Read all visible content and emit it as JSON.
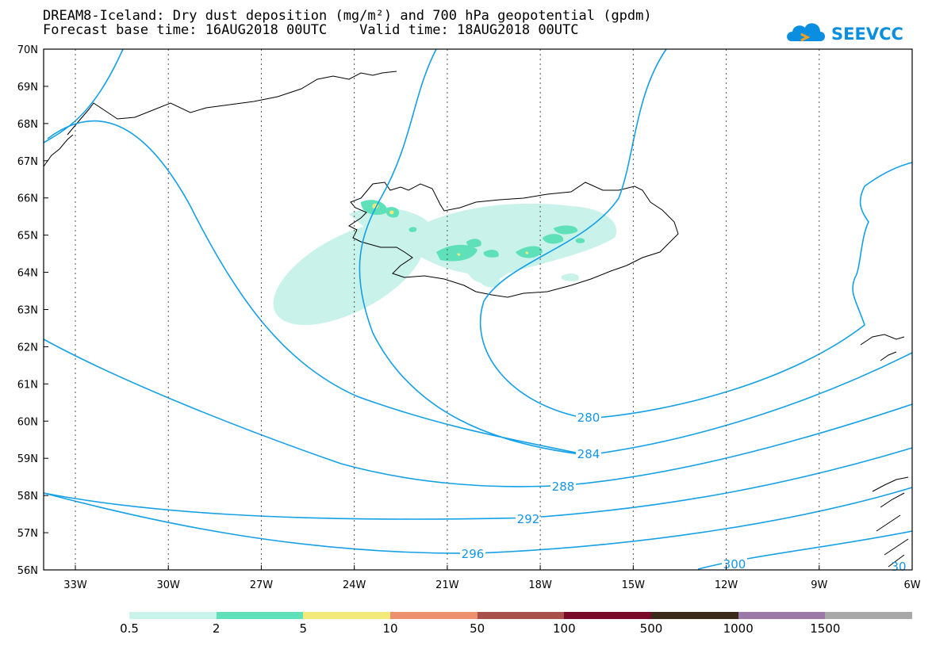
{
  "title_line1": "DREAM8-Iceland: Dry dust deposition (mg/m²) and 700 hPa geopotential (gpdm)",
  "title_line2": "Forecast base time: 16AUG2018 00UTC    Valid time: 18AUG2018 00UTC",
  "logo": {
    "text": "SEEVCCC",
    "icon": "cloud-logo-icon",
    "color": "#0a8ee0"
  },
  "colors": {
    "contour": "#14a0e6",
    "coast": "#000000",
    "grid": "#555555"
  },
  "axes": {
    "lat_labels": [
      "70N",
      "69N",
      "68N",
      "67N",
      "66N",
      "65N",
      "64N",
      "63N",
      "62N",
      "61N",
      "60N",
      "59N",
      "58N",
      "57N",
      "56N"
    ],
    "lon_labels": [
      "33W",
      "30W",
      "27W",
      "24W",
      "21W",
      "18W",
      "15W",
      "12W",
      "9W",
      "6W"
    ]
  },
  "contours": [
    {
      "label": "280"
    },
    {
      "label": "284"
    },
    {
      "label": "288"
    },
    {
      "label": "292"
    },
    {
      "label": "296"
    },
    {
      "label": "300"
    },
    {
      "label": "30"
    }
  ],
  "legend": {
    "labels": [
      "0.5",
      "2",
      "5",
      "10",
      "50",
      "100",
      "500",
      "1000",
      "1500"
    ],
    "colors": [
      "#c8f2ea",
      "#5ee0b8",
      "#f4ea7c",
      "#ec9070",
      "#a8504a",
      "#7a0a2a",
      "#3a2a1a",
      "#9a78a8",
      "#a8a8a8"
    ]
  }
}
